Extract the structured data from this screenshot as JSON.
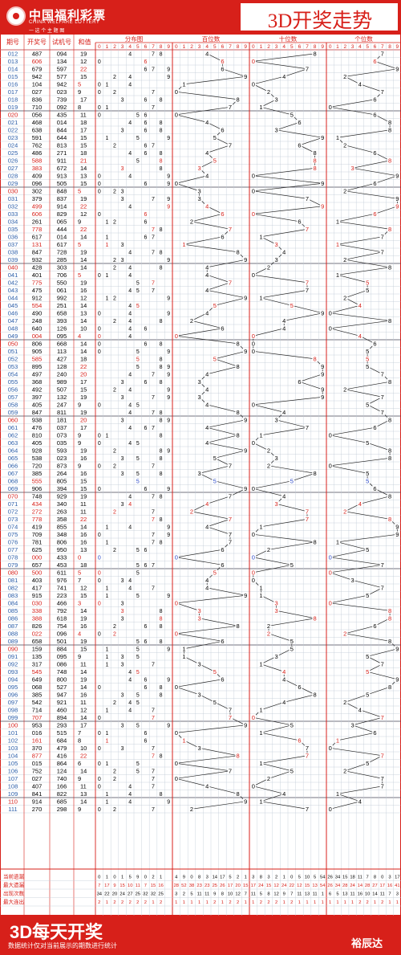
{
  "header": {
    "logo_cn": "中国福利彩票",
    "logo_en": "CHINA WELFARE LOTTERY",
    "logo_slogan": "一 这 个 主 题 图",
    "title": "3D开奖走势"
  },
  "footer": {
    "title": "3D每天开奖",
    "note": "数据统计仅对当前展示的期数进行统计",
    "brand": "裕辰达"
  },
  "colors": {
    "brand_red": "#d7201a",
    "grid_line": "#bfc9d6",
    "blue_digits": "#2a48c8",
    "dark_text": "#000000"
  },
  "chart_data": {
    "type": "table",
    "columns": {
      "period": "期号",
      "draw": "开奖号",
      "test": "试机号",
      "sum": "和值",
      "distribution": "分布图",
      "hundreds": "百位数",
      "tens": "十位数",
      "units": "个位数"
    },
    "digit_labels": [
      "0",
      "1",
      "2",
      "3",
      "4",
      "5",
      "6",
      "7",
      "8",
      "9"
    ],
    "rows": [
      {
        "p": "012",
        "d": "487",
        "t": "094",
        "s": 19
      },
      {
        "p": "013",
        "d": "606",
        "t": "134",
        "s": 12
      },
      {
        "p": "014",
        "d": "679",
        "t": "597",
        "s": 22
      },
      {
        "p": "015",
        "d": "942",
        "t": "577",
        "s": 15
      },
      {
        "p": "016",
        "d": "104",
        "t": "942",
        "s": 5
      },
      {
        "p": "017",
        "d": "027",
        "t": "023",
        "s": 9
      },
      {
        "p": "018",
        "d": "836",
        "t": "739",
        "s": 17
      },
      {
        "p": "019",
        "d": "710",
        "t": "092",
        "s": 8
      },
      {
        "p": "020",
        "d": "056",
        "t": "435",
        "s": 11
      },
      {
        "p": "021",
        "d": "468",
        "t": "014",
        "s": 18
      },
      {
        "p": "022",
        "d": "638",
        "t": "844",
        "s": 17
      },
      {
        "p": "023",
        "d": "591",
        "t": "644",
        "s": 15
      },
      {
        "p": "024",
        "d": "762",
        "t": "813",
        "s": 15
      },
      {
        "p": "025",
        "d": "486",
        "t": "271",
        "s": 18
      },
      {
        "p": "026",
        "d": "588",
        "t": "911",
        "s": 21
      },
      {
        "p": "027",
        "d": "383",
        "t": "672",
        "s": 14
      },
      {
        "p": "028",
        "d": "409",
        "t": "913",
        "s": 13
      },
      {
        "p": "029",
        "d": "096",
        "t": "505",
        "s": 15
      },
      {
        "p": "030",
        "d": "302",
        "t": "848",
        "s": 5
      },
      {
        "p": "031",
        "d": "379",
        "t": "837",
        "s": 19
      },
      {
        "p": "032",
        "d": "499",
        "t": "914",
        "s": 22
      },
      {
        "p": "033",
        "d": "606",
        "t": "829",
        "s": 12
      },
      {
        "p": "034",
        "d": "261",
        "t": "065",
        "s": 9
      },
      {
        "p": "035",
        "d": "778",
        "t": "444",
        "s": 22
      },
      {
        "p": "036",
        "d": "617",
        "t": "014",
        "s": 14
      },
      {
        "p": "037",
        "d": "131",
        "t": "617",
        "s": 5
      },
      {
        "p": "038",
        "d": "847",
        "t": "728",
        "s": 19
      },
      {
        "p": "039",
        "d": "932",
        "t": "285",
        "s": 14
      },
      {
        "p": "040",
        "d": "428",
        "t": "303",
        "s": 14
      },
      {
        "p": "041",
        "d": "401",
        "t": "706",
        "s": 5
      },
      {
        "p": "042",
        "d": "775",
        "t": "550",
        "s": 19
      },
      {
        "p": "043",
        "d": "475",
        "t": "061",
        "s": 16
      },
      {
        "p": "044",
        "d": "912",
        "t": "992",
        "s": 12
      },
      {
        "p": "045",
        "d": "554",
        "t": "251",
        "s": 14
      },
      {
        "p": "046",
        "d": "490",
        "t": "658",
        "s": 13
      },
      {
        "p": "047",
        "d": "248",
        "t": "393",
        "s": 14
      },
      {
        "p": "048",
        "d": "640",
        "t": "126",
        "s": 10
      },
      {
        "p": "049",
        "d": "004",
        "t": "095",
        "s": 4
      },
      {
        "p": "050",
        "d": "806",
        "t": "668",
        "s": 14
      },
      {
        "p": "051",
        "d": "905",
        "t": "113",
        "s": 14
      },
      {
        "p": "052",
        "d": "585",
        "t": "427",
        "s": 18
      },
      {
        "p": "053",
        "d": "895",
        "t": "128",
        "s": 22
      },
      {
        "p": "054",
        "d": "497",
        "t": "240",
        "s": 20
      },
      {
        "p": "055",
        "d": "368",
        "t": "989",
        "s": 17
      },
      {
        "p": "056",
        "d": "492",
        "t": "507",
        "s": 15
      },
      {
        "p": "057",
        "d": "397",
        "t": "132",
        "s": 19
      },
      {
        "p": "058",
        "d": "405",
        "t": "247",
        "s": 9
      },
      {
        "p": "059",
        "d": "847",
        "t": "811",
        "s": 19
      },
      {
        "p": "060",
        "d": "938",
        "t": "181",
        "s": 20
      },
      {
        "p": "061",
        "d": "476",
        "t": "037",
        "s": 17
      },
      {
        "p": "062",
        "d": "810",
        "t": "073",
        "s": 9
      },
      {
        "p": "063",
        "d": "405",
        "t": "035",
        "s": 9
      },
      {
        "p": "064",
        "d": "928",
        "t": "593",
        "s": 19
      },
      {
        "p": "065",
        "d": "538",
        "t": "023",
        "s": 16
      },
      {
        "p": "066",
        "d": "720",
        "t": "873",
        "s": 9
      },
      {
        "p": "067",
        "d": "385",
        "t": "264",
        "s": 16
      },
      {
        "p": "068",
        "d": "555",
        "t": "805",
        "s": 15
      },
      {
        "p": "069",
        "d": "906",
        "t": "394",
        "s": 15
      },
      {
        "p": "070",
        "d": "748",
        "t": "929",
        "s": 19
      },
      {
        "p": "071",
        "d": "434",
        "t": "340",
        "s": 11
      },
      {
        "p": "072",
        "d": "272",
        "t": "263",
        "s": 11
      },
      {
        "p": "073",
        "d": "778",
        "t": "358",
        "s": 22
      },
      {
        "p": "074",
        "d": "419",
        "t": "855",
        "s": 14
      },
      {
        "p": "075",
        "d": "709",
        "t": "348",
        "s": 16
      },
      {
        "p": "076",
        "d": "781",
        "t": "806",
        "s": 16
      },
      {
        "p": "077",
        "d": "625",
        "t": "950",
        "s": 13
      },
      {
        "p": "078",
        "d": "000",
        "t": "433",
        "s": 0
      },
      {
        "p": "079",
        "d": "657",
        "t": "453",
        "s": 18
      },
      {
        "p": "080",
        "d": "500",
        "t": "611",
        "s": 5
      },
      {
        "p": "081",
        "d": "403",
        "t": "976",
        "s": 7
      },
      {
        "p": "082",
        "d": "417",
        "t": "741",
        "s": 12
      },
      {
        "p": "083",
        "d": "915",
        "t": "223",
        "s": 15
      },
      {
        "p": "084",
        "d": "030",
        "t": "466",
        "s": 3
      },
      {
        "p": "085",
        "d": "338",
        "t": "792",
        "s": 14
      },
      {
        "p": "086",
        "d": "388",
        "t": "618",
        "s": 19
      },
      {
        "p": "087",
        "d": "826",
        "t": "754",
        "s": 16
      },
      {
        "p": "088",
        "d": "022",
        "t": "096",
        "s": 4
      },
      {
        "p": "089",
        "d": "658",
        "t": "501",
        "s": 19
      },
      {
        "p": "090",
        "d": "159",
        "t": "884",
        "s": 15
      },
      {
        "p": "091",
        "d": "135",
        "t": "095",
        "s": 9
      },
      {
        "p": "092",
        "d": "317",
        "t": "086",
        "s": 11
      },
      {
        "p": "093",
        "d": "545",
        "t": "748",
        "s": 14
      },
      {
        "p": "094",
        "d": "649",
        "t": "800",
        "s": 19
      },
      {
        "p": "095",
        "d": "068",
        "t": "527",
        "s": 14
      },
      {
        "p": "096",
        "d": "385",
        "t": "947",
        "s": 16
      },
      {
        "p": "097",
        "d": "542",
        "t": "921",
        "s": 11
      },
      {
        "p": "098",
        "d": "714",
        "t": "460",
        "s": 12
      },
      {
        "p": "099",
        "d": "707",
        "t": "894",
        "s": 14
      },
      {
        "p": "100",
        "d": "953",
        "t": "293",
        "s": 17
      },
      {
        "p": "101",
        "d": "016",
        "t": "515",
        "s": 7
      },
      {
        "p": "102",
        "d": "161",
        "t": "684",
        "s": 8
      },
      {
        "p": "103",
        "d": "370",
        "t": "479",
        "s": 10
      },
      {
        "p": "104",
        "d": "877",
        "t": "416",
        "s": 22
      },
      {
        "p": "105",
        "d": "015",
        "t": "864",
        "s": 6
      },
      {
        "p": "106",
        "d": "752",
        "t": "124",
        "s": 14
      },
      {
        "p": "107",
        "d": "027",
        "t": "740",
        "s": 9
      },
      {
        "p": "108",
        "d": "407",
        "t": "166",
        "s": 11
      },
      {
        "p": "109",
        "d": "841",
        "t": "822",
        "s": 13
      },
      {
        "p": "110",
        "d": "914",
        "t": "685",
        "s": 14
      },
      {
        "p": "111",
        "d": "270",
        "t": "298",
        "s": 9
      }
    ],
    "stats": {
      "labels": [
        "当前遗漏",
        "最大遗漏",
        "出现次数",
        "最大连出"
      ],
      "distribution": [
        [
          "0",
          "1",
          "0",
          "1",
          "5",
          "9",
          "0",
          "2",
          "1"
        ],
        [
          "7",
          "17",
          "9",
          "15",
          "10",
          "11",
          "7",
          "15",
          "16"
        ],
        [
          "34",
          "22",
          "20",
          "24",
          "27",
          "25",
          "32",
          "32",
          "25"
        ],
        [
          "2",
          "1",
          "2",
          "2",
          "2",
          "2",
          "2",
          "1",
          "2"
        ]
      ],
      "hundreds": [
        [
          "4",
          "9",
          "0",
          "8",
          "3",
          "14",
          "17",
          "5",
          "2",
          "1"
        ],
        [
          "28",
          "52",
          "38",
          "23",
          "23",
          "25",
          "26",
          "17",
          "20",
          "15"
        ],
        [
          "3",
          "2",
          "5",
          "11",
          "11",
          "9",
          "8",
          "10",
          "12",
          "7"
        ],
        [
          "1",
          "1",
          "1",
          "1",
          "1",
          "2",
          "1",
          "2",
          "2",
          "1"
        ]
      ],
      "tens": [
        [
          "3",
          "8",
          "3",
          "2",
          "1",
          "0",
          "5",
          "10",
          "5",
          "54"
        ],
        [
          "17",
          "24",
          "15",
          "12",
          "24",
          "22",
          "12",
          "15",
          "13",
          "54"
        ],
        [
          "11",
          "5",
          "8",
          "12",
          "9",
          "7",
          "11",
          "13",
          "11",
          "1"
        ],
        [
          "1",
          "2",
          "2",
          "2",
          "1",
          "2",
          "1",
          "1",
          "1",
          "1"
        ]
      ],
      "units": [
        [
          "26",
          "34",
          "15",
          "18",
          "11",
          "7",
          "8",
          "0",
          "3",
          "17"
        ],
        [
          "26",
          "34",
          "28",
          "24",
          "14",
          "28",
          "27",
          "17",
          "16",
          "41"
        ],
        [
          "6",
          "5",
          "13",
          "11",
          "16",
          "10",
          "14",
          "11",
          "7",
          "3"
        ],
        [
          "1",
          "1",
          "1",
          "1",
          "2",
          "2",
          "1",
          "2",
          "1",
          "1"
        ]
      ]
    }
  }
}
